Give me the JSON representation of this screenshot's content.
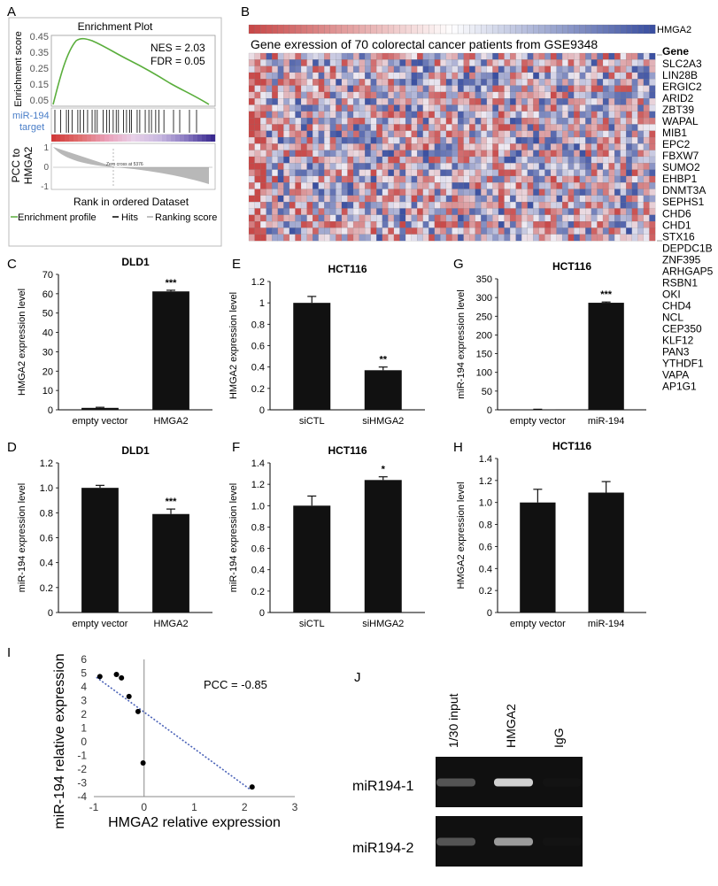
{
  "figure": {
    "panels": [
      "A",
      "B",
      "C",
      "D",
      "E",
      "F",
      "G",
      "H",
      "I",
      "J"
    ]
  },
  "panelA": {
    "title": "Enrichment Plot",
    "ylabel": "Enrichment score",
    "yticks": [
      "0.45",
      "0.35",
      "0.25",
      "0.15",
      "0.05"
    ],
    "nes": "NES = 2.03",
    "fdr": "FDR = 0.05",
    "hits_label_1": "miR-194",
    "hits_label_2": "target",
    "rank_label_1": "PCC to",
    "rank_label_2": "HMGA2",
    "rank_ticks": [
      "1",
      "0",
      "-1"
    ],
    "zero_cross": "Zero cross at 5376",
    "xlabel": "Rank in ordered Dataset",
    "legend": [
      "Enrichment profile",
      "Hits",
      "Ranking score"
    ],
    "colors": {
      "profile": "#5aae3c",
      "hits": "#000000",
      "ranking": "#aaaaaa"
    }
  },
  "panelB": {
    "title": "Gene exression of 70 colorectal cancer patients from GSE9348",
    "top_label": "HMGA2",
    "gene_header": "Gene",
    "genes": [
      "SLC2A3",
      "LIN28B",
      "ERGIC2",
      "ARID2",
      "ZBT39",
      "WAPAL",
      "MIB1",
      "EPC2",
      "FBXW7",
      "SUMO2",
      "EHBP1",
      "DNMT3A",
      "SEPHS1",
      "CHD6",
      "CHD1",
      "STX16",
      "DEPDC1B",
      "ZNF395",
      "ARHGAP5",
      "RSBN1",
      "OKI",
      "CHD4",
      "NCL",
      "CEP350",
      "KLF12",
      "PAN3",
      "YTHDF1",
      "VAPA",
      "AP1G1"
    ],
    "heatmap_rows": 29,
    "heatmap_cols": 70,
    "colors": {
      "high": "#c84848",
      "low": "#3a4fa0",
      "mid": "#eeeaf2"
    }
  },
  "chart_data": [
    {
      "id": "C",
      "type": "bar",
      "title": "DLD1",
      "ylabel": "HMGA2 expression level",
      "categories": [
        "empty vector",
        "HMGA2"
      ],
      "values": [
        1,
        61.2
      ],
      "errors": [
        0.3,
        0.6
      ],
      "ylim": [
        0,
        70
      ],
      "yticks": [
        "0",
        "10",
        "20",
        "30",
        "40",
        "50",
        "60",
        "70"
      ],
      "significance": [
        "",
        "***"
      ]
    },
    {
      "id": "D",
      "type": "bar",
      "title": "DLD1",
      "ylabel": "miR-194 expression level",
      "categories": [
        "empty vector",
        "HMGA2"
      ],
      "values": [
        1.0,
        0.79
      ],
      "errors": [
        0.02,
        0.04
      ],
      "ylim": [
        0,
        1.2
      ],
      "yticks": [
        "0",
        "0.2",
        "0.4",
        "0.6",
        "0.8",
        "1.0",
        "1.2"
      ],
      "significance": [
        "",
        "***"
      ]
    },
    {
      "id": "E",
      "type": "bar",
      "title": "HCT116",
      "ylabel": "HMGA2 expression level",
      "categories": [
        "siCTL",
        "siHMGA2"
      ],
      "values": [
        1.0,
        0.37
      ],
      "errors": [
        0.06,
        0.03
      ],
      "ylim": [
        0,
        1.2
      ],
      "yticks": [
        "0",
        "0.2",
        "0.4",
        "0.6",
        "0.8",
        "1",
        "1.2"
      ],
      "significance": [
        "",
        "**"
      ]
    },
    {
      "id": "F",
      "type": "bar",
      "title": "HCT116",
      "ylabel": "miR-194 expression level",
      "categories": [
        "siCTL",
        "siHMGA2"
      ],
      "values": [
        1.0,
        1.24
      ],
      "errors": [
        0.09,
        0.03
      ],
      "ylim": [
        0,
        1.4
      ],
      "yticks": [
        "0",
        "0.2",
        "0.4",
        "0.6",
        "0.8",
        "1.0",
        "1.2",
        "1.4"
      ],
      "significance": [
        "",
        "*"
      ]
    },
    {
      "id": "G",
      "type": "bar",
      "title": "HCT116",
      "ylabel": "miR-194 expression level",
      "categories": [
        "empty vector",
        "miR-194"
      ],
      "values": [
        1,
        286
      ],
      "errors": [
        0.5,
        2
      ],
      "ylim": [
        0,
        350
      ],
      "yticks": [
        "0",
        "50",
        "100",
        "150",
        "200",
        "250",
        "300",
        "350"
      ],
      "significance": [
        "",
        "***"
      ]
    },
    {
      "id": "H",
      "type": "bar",
      "title": "HCT116",
      "ylabel": "HMGA2 expression level",
      "categories": [
        "empty vector",
        "miR-194"
      ],
      "values": [
        1.0,
        1.09
      ],
      "errors": [
        0.12,
        0.1
      ],
      "ylim": [
        0,
        1.4
      ],
      "yticks": [
        "0",
        "0.2",
        "0.4",
        "0.6",
        "0.8",
        "1.0",
        "1.2",
        "1.4"
      ],
      "significance": [
        "",
        ""
      ]
    },
    {
      "id": "I",
      "type": "scatter",
      "xlabel": "HMGA2 relative expression",
      "ylabel": "miR-194 relative expression",
      "annotation": "PCC = -0.85",
      "xlim": [
        -1,
        3
      ],
      "ylim": [
        -4,
        6
      ],
      "xticks": [
        "-1",
        "0",
        "1",
        "2",
        "3"
      ],
      "yticks": [
        "-4",
        "-3",
        "-2",
        "-1",
        "0",
        "1",
        "2",
        "3",
        "4",
        "5",
        "6"
      ],
      "points": [
        [
          -0.88,
          4.75
        ],
        [
          -0.55,
          4.9
        ],
        [
          -0.45,
          4.65
        ],
        [
          -0.3,
          3.3
        ],
        [
          -0.12,
          2.2
        ],
        [
          -0.02,
          -1.55
        ],
        [
          2.15,
          -3.3
        ]
      ],
      "trendline": [
        [
          -0.95,
          4.7
        ],
        [
          2.1,
          -3.45
        ]
      ],
      "trend_color": "#4a62b8"
    }
  ],
  "panelJ": {
    "lanes": [
      "1/30 input",
      "HMGA2",
      "IgG"
    ],
    "rows": [
      "miR194-1",
      "miR194-2"
    ],
    "band_intensity": [
      [
        0.55,
        0.95,
        0.05
      ],
      [
        0.55,
        0.8,
        0.05
      ]
    ]
  }
}
